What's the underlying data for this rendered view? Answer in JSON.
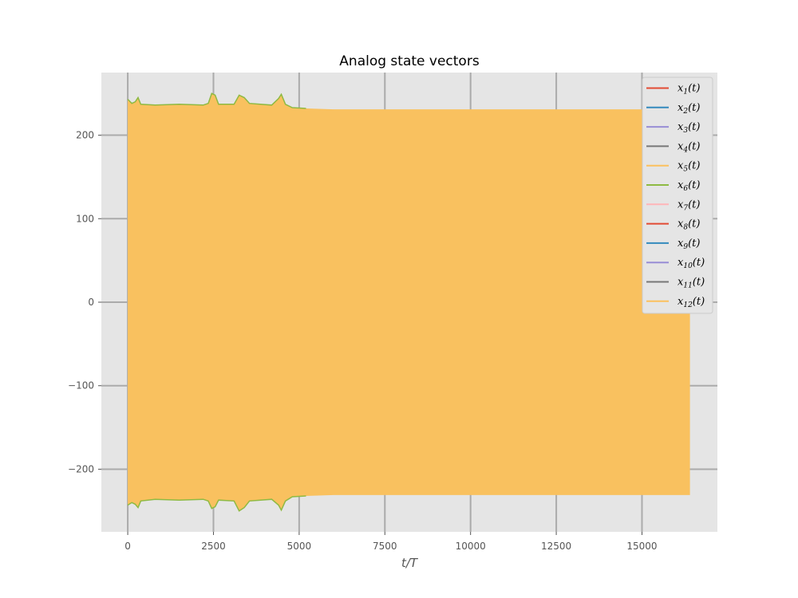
{
  "chart_data": {
    "type": "line",
    "title": "Analog state vectors",
    "xlabel": "t/T",
    "ylabel": "",
    "xlim": [
      -770,
      17200
    ],
    "ylim": [
      -275,
      275
    ],
    "xticks": [
      0,
      2500,
      5000,
      7500,
      10000,
      12500,
      15000
    ],
    "xtick_labels": [
      "0",
      "2500",
      "5000",
      "7500",
      "10000",
      "12500",
      "15000"
    ],
    "yticks": [
      -200,
      -100,
      0,
      100,
      200
    ],
    "ytick_labels": [
      "−200",
      "−100",
      "0",
      "100",
      "200"
    ],
    "grid": true,
    "legend_position": "top-right",
    "series": [
      {
        "name": "x1(t)",
        "base": "x",
        "sub": "1",
        "suffix": "(t)",
        "color": "#E24A33"
      },
      {
        "name": "x2(t)",
        "base": "x",
        "sub": "2",
        "suffix": "(t)",
        "color": "#348ABD"
      },
      {
        "name": "x3(t)",
        "base": "x",
        "sub": "3",
        "suffix": "(t)",
        "color": "#988ED5"
      },
      {
        "name": "x4(t)",
        "base": "x",
        "sub": "4",
        "suffix": "(t)",
        "color": "#777777"
      },
      {
        "name": "x5(t)",
        "base": "x",
        "sub": "5",
        "suffix": "(t)",
        "color": "#FBC15E"
      },
      {
        "name": "x6(t)",
        "base": "x",
        "sub": "6",
        "suffix": "(t)",
        "color": "#8EBA42"
      },
      {
        "name": "x7(t)",
        "base": "x",
        "sub": "7",
        "suffix": "(t)",
        "color": "#FFB5B8"
      },
      {
        "name": "x8(t)",
        "base": "x",
        "sub": "8",
        "suffix": "(t)",
        "color": "#E24A33"
      },
      {
        "name": "x9(t)",
        "base": "x",
        "sub": "9",
        "suffix": "(t)",
        "color": "#348ABD"
      },
      {
        "name": "x10(t)",
        "base": "x",
        "sub": "10",
        "suffix": "(t)",
        "color": "#988ED5"
      },
      {
        "name": "x11(t)",
        "base": "x",
        "sub": "11",
        "suffix": "(t)",
        "color": "#777777"
      },
      {
        "name": "x12(t)",
        "base": "x",
        "sub": "12",
        "suffix": "(t)",
        "color": "#FBC15E"
      }
    ],
    "envelope": {
      "x_start": 0,
      "x_end": 16400,
      "fill_color": "#F9C15F",
      "outline_color": "#8EBA42",
      "upper": [
        [
          0,
          243
        ],
        [
          120,
          238
        ],
        [
          220,
          240
        ],
        [
          300,
          245
        ],
        [
          380,
          237
        ],
        [
          800,
          236
        ],
        [
          1500,
          237
        ],
        [
          2200,
          236
        ],
        [
          2350,
          238
        ],
        [
          2450,
          250
        ],
        [
          2550,
          248
        ],
        [
          2650,
          237
        ],
        [
          3100,
          237
        ],
        [
          3250,
          248
        ],
        [
          3400,
          245
        ],
        [
          3550,
          238
        ],
        [
          4200,
          236
        ],
        [
          4400,
          244
        ],
        [
          4480,
          249
        ],
        [
          4600,
          237
        ],
        [
          4800,
          233
        ],
        [
          5200,
          232
        ],
        [
          6000,
          231
        ],
        [
          16400,
          231
        ]
      ],
      "lower": [
        [
          0,
          -243
        ],
        [
          120,
          -240
        ],
        [
          220,
          -242
        ],
        [
          300,
          -246
        ],
        [
          380,
          -238
        ],
        [
          800,
          -236
        ],
        [
          1500,
          -237
        ],
        [
          2200,
          -236
        ],
        [
          2350,
          -238
        ],
        [
          2450,
          -247
        ],
        [
          2550,
          -245
        ],
        [
          2650,
          -237
        ],
        [
          3100,
          -238
        ],
        [
          3250,
          -250
        ],
        [
          3400,
          -246
        ],
        [
          3550,
          -238
        ],
        [
          4200,
          -236
        ],
        [
          4400,
          -243
        ],
        [
          4480,
          -249
        ],
        [
          4600,
          -238
        ],
        [
          4800,
          -233
        ],
        [
          5200,
          -232
        ],
        [
          6000,
          -231
        ],
        [
          16400,
          -231
        ]
      ]
    }
  }
}
